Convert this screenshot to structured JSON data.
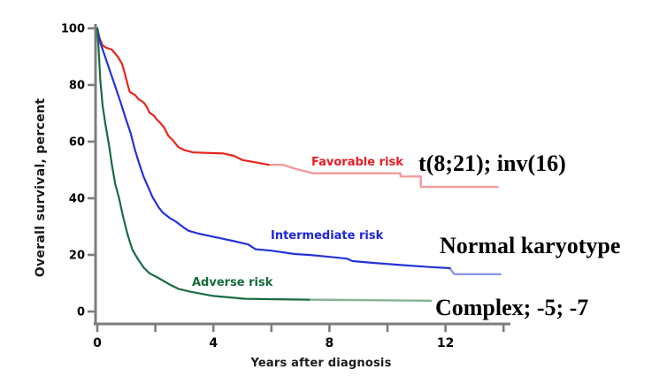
{
  "figure": {
    "y_axis_title": "Overall survival, percent",
    "x_axis_title": "Years after diagnosis"
  },
  "axis_color": "#7d7d7d",
  "chart_data": {
    "type": "line",
    "subtype": "kaplan-meier-step-survival",
    "title": "",
    "xlabel": "Years after diagnosis",
    "ylabel": "Overall survival, percent",
    "xlim": [
      0,
      14.3
    ],
    "ylim": [
      0,
      100
    ],
    "x_ticks_labeled": [
      0,
      4,
      8,
      12
    ],
    "x_ticks_minor": [
      2,
      6,
      10,
      14
    ],
    "y_ticks": [
      0,
      20,
      40,
      60,
      80,
      100
    ],
    "grid": false,
    "legend_position": "inline-labels-on-curves",
    "series": [
      {
        "name": "Favorable risk",
        "annotation": "t(8;21); inv(16)",
        "color": "#e8251d",
        "tail_color": "#f39b9b",
        "points": [
          [
            0,
            100
          ],
          [
            0.08,
            96.5
          ],
          [
            0.18,
            94
          ],
          [
            0.3,
            93.2
          ],
          [
            0.5,
            92.5
          ],
          [
            0.7,
            90
          ],
          [
            0.85,
            87.5
          ],
          [
            0.95,
            84
          ],
          [
            1.05,
            80
          ],
          [
            1.12,
            77.5
          ],
          [
            1.3,
            76.5
          ],
          [
            1.42,
            75
          ],
          [
            1.6,
            73.8
          ],
          [
            1.72,
            72
          ],
          [
            1.8,
            70.2
          ],
          [
            1.95,
            69.2
          ],
          [
            2.05,
            67.8
          ],
          [
            2.18,
            66.5
          ],
          [
            2.3,
            65
          ],
          [
            2.45,
            62
          ],
          [
            2.6,
            60.5
          ],
          [
            2.8,
            58
          ],
          [
            3.0,
            57
          ],
          [
            3.3,
            56.2
          ],
          [
            4.35,
            55.8
          ],
          [
            4.7,
            55
          ],
          [
            5.0,
            53.5
          ],
          [
            5.5,
            52.6
          ],
          [
            5.9,
            51.8
          ]
        ],
        "tail_points": [
          [
            5.9,
            51.8
          ],
          [
            6.4,
            51.8
          ],
          [
            6.85,
            50.3
          ],
          [
            7.3,
            49.2
          ],
          [
            7.45,
            48.8
          ],
          [
            10.45,
            48.8
          ],
          [
            10.45,
            47.7
          ],
          [
            11.15,
            47.7
          ],
          [
            11.15,
            44
          ],
          [
            13.8,
            44
          ]
        ]
      },
      {
        "name": "Intermediate risk",
        "annotation": "Normal karyotype",
        "color": "#2433d8",
        "tail_color": "#8c99ee",
        "points": [
          [
            0,
            100
          ],
          [
            0.1,
            95
          ],
          [
            0.2,
            92
          ],
          [
            0.35,
            87.5
          ],
          [
            0.6,
            80
          ],
          [
            0.8,
            74
          ],
          [
            1.0,
            67.5
          ],
          [
            1.15,
            63
          ],
          [
            1.3,
            57
          ],
          [
            1.45,
            52
          ],
          [
            1.6,
            47.5
          ],
          [
            1.75,
            44
          ],
          [
            1.9,
            40.5
          ],
          [
            2.1,
            37
          ],
          [
            2.25,
            35
          ],
          [
            2.5,
            33
          ],
          [
            2.7,
            31.8
          ],
          [
            3.0,
            29.5
          ],
          [
            3.15,
            28.5
          ],
          [
            3.5,
            27.5
          ],
          [
            3.95,
            26.5
          ],
          [
            4.65,
            25
          ],
          [
            5.2,
            23.7
          ],
          [
            5.45,
            22
          ],
          [
            6.0,
            21.5
          ],
          [
            6.8,
            20.3
          ],
          [
            7.3,
            20
          ],
          [
            8.0,
            19.3
          ],
          [
            8.6,
            18.7
          ],
          [
            8.8,
            17.8
          ],
          [
            9.5,
            17.2
          ],
          [
            10.5,
            16.4
          ],
          [
            11.5,
            15.7
          ],
          [
            12.15,
            15.3
          ]
        ],
        "tail_points": [
          [
            12.15,
            15.3
          ],
          [
            12.3,
            13.2
          ],
          [
            13.9,
            13.2
          ]
        ]
      },
      {
        "name": "Adverse risk",
        "annotation": "Complex; -5; -7",
        "color": "#1a6b42",
        "tail_points_note": "",
        "tail_color": "#86b296",
        "points": [
          [
            0,
            100
          ],
          [
            0.05,
            92
          ],
          [
            0.1,
            82
          ],
          [
            0.18,
            73
          ],
          [
            0.28,
            66
          ],
          [
            0.4,
            59
          ],
          [
            0.5,
            52
          ],
          [
            0.62,
            45
          ],
          [
            0.75,
            40
          ],
          [
            0.9,
            33
          ],
          [
            1.05,
            27
          ],
          [
            1.2,
            22
          ],
          [
            1.4,
            18.5
          ],
          [
            1.6,
            15.5
          ],
          [
            1.8,
            13.5
          ],
          [
            2.05,
            12.2
          ],
          [
            2.5,
            9.5
          ],
          [
            2.8,
            8
          ],
          [
            3.2,
            7
          ],
          [
            4.0,
            5.5
          ],
          [
            5.1,
            4.5
          ],
          [
            7.3,
            4.2
          ]
        ],
        "tail_points": [
          [
            7.3,
            4.2
          ],
          [
            9.5,
            4.0
          ],
          [
            11.5,
            3.8
          ]
        ]
      }
    ]
  }
}
